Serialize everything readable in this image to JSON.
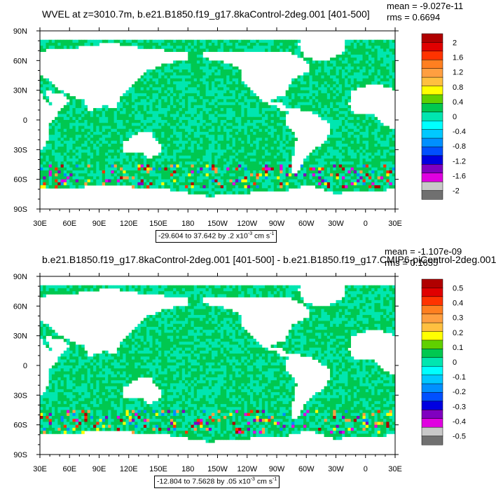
{
  "chart_data": [
    {
      "type": "heatmap",
      "title": "WVEL at z=3010.7m, b.e21.B1850.f19_g17.8kaControl-2deg.001 [401-500]",
      "stats": {
        "mean": "mean = -9.027e-11",
        "rms": "rms = 0.6694"
      },
      "x_tick_labels": [
        "30E",
        "60E",
        "90E",
        "120E",
        "150E",
        "180",
        "150W",
        "120W",
        "90W",
        "60W",
        "30W",
        "0",
        "30E"
      ],
      "y_tick_labels": [
        "90N",
        "60N",
        "30N",
        "0",
        "30S",
        "60S",
        "90S"
      ],
      "xlim": [
        30,
        390
      ],
      "ylim": [
        -90,
        90
      ],
      "range_text": {
        "main": "-29.604 to 37.642 by .2 x10",
        "exp": "-3",
        "unit": " cm s",
        "unit_exp": "-1"
      },
      "colorbar": {
        "labels": [
          "2",
          "1.6",
          "1.2",
          "0.8",
          "0.4",
          "0",
          "-0.4",
          "-0.8",
          "-1.2",
          "-1.6",
          "-2"
        ],
        "colors": [
          "#b00000",
          "#e00000",
          "#ff3300",
          "#ff7f20",
          "#ff9f40",
          "#ffc040",
          "#ffff00",
          "#60d000",
          "#00c850",
          "#00e6b0",
          "#00ffff",
          "#00c8ff",
          "#0090ff",
          "#0050ff",
          "#0000e0",
          "#8000c0",
          "#e000e0",
          "#c8c8c8",
          "#707070"
        ]
      }
    },
    {
      "type": "heatmap",
      "title": "b.e21.B1850.f19_g17.8kaControl-2deg.001 [401-500] - b.e21.B1850.f19_g17.CMIP6-piControl-2deg.001",
      "stats": {
        "mean": "mean = -1.107e-09",
        "rms": "rms = 0.1655"
      },
      "x_tick_labels": [
        "30E",
        "60E",
        "90E",
        "120E",
        "150E",
        "180",
        "150W",
        "120W",
        "90W",
        "60W",
        "30W",
        "0",
        "30E"
      ],
      "y_tick_labels": [
        "90N",
        "60N",
        "30N",
        "0",
        "30S",
        "60S",
        "90S"
      ],
      "xlim": [
        30,
        390
      ],
      "ylim": [
        -90,
        90
      ],
      "range_text": {
        "main": "-12.804 to 7.5628 by .05 x10",
        "exp": "-3",
        "unit": " cm s",
        "unit_exp": "-1"
      },
      "colorbar": {
        "labels": [
          "0.5",
          "0.4",
          "0.3",
          "0.2",
          "0.1",
          "0",
          "-0.1",
          "-0.2",
          "-0.3",
          "-0.4",
          "-0.5"
        ],
        "colors": [
          "#b00000",
          "#e00000",
          "#ff3300",
          "#ff7f20",
          "#ff9f40",
          "#ffc040",
          "#ffff00",
          "#60d000",
          "#00c850",
          "#00e6b0",
          "#00ffff",
          "#00c8ff",
          "#0090ff",
          "#0050ff",
          "#0000e0",
          "#8000c0",
          "#e000e0",
          "#c8c8c8",
          "#707070"
        ]
      }
    }
  ]
}
